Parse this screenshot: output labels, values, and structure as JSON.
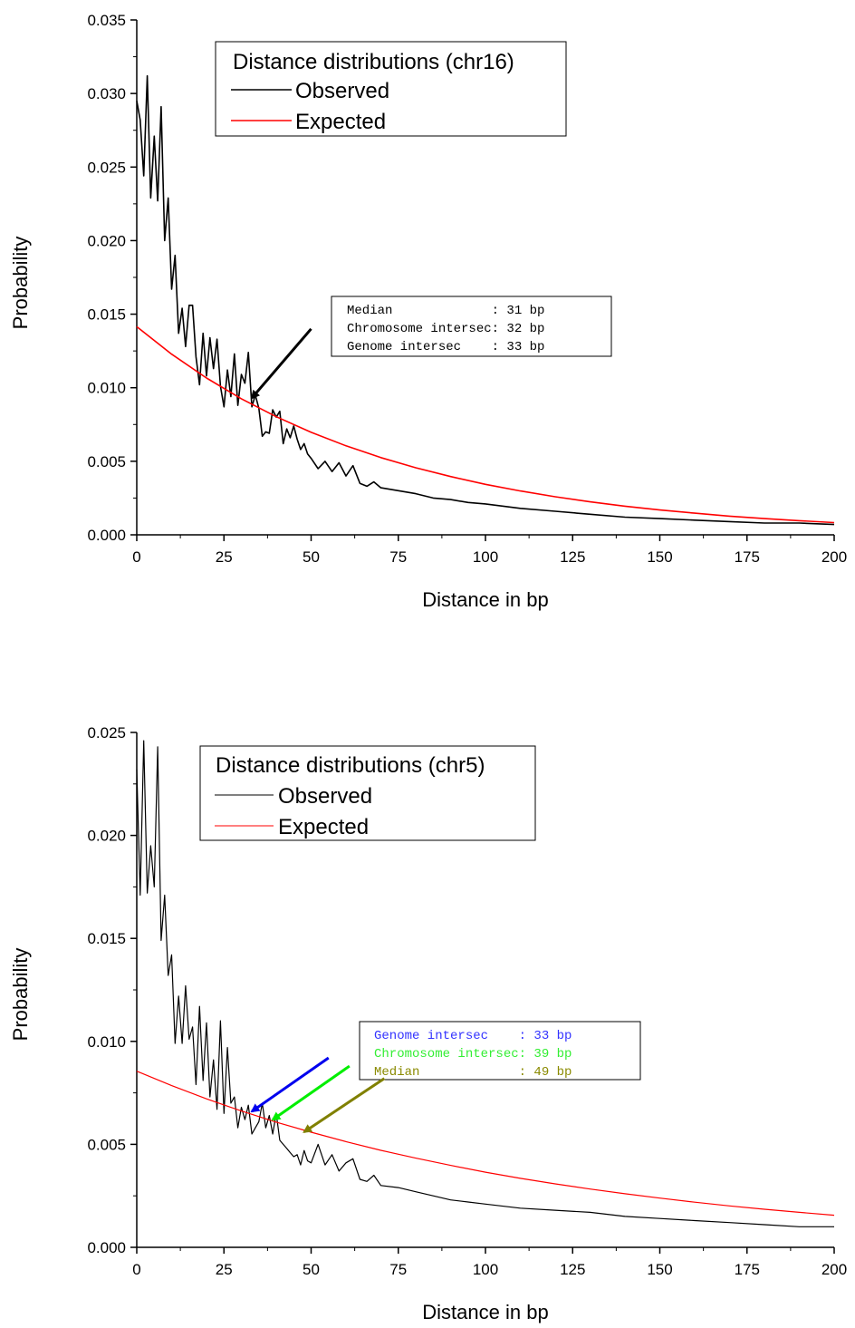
{
  "chart_data": [
    {
      "type": "line",
      "xlabel": "Distance in bp",
      "ylabel": "Probability",
      "xlim": [
        0,
        200
      ],
      "ylim": [
        0,
        0.035
      ],
      "xticks": [
        0,
        25,
        50,
        75,
        100,
        125,
        150,
        175,
        200
      ],
      "xtick_labels": [
        "0",
        "25",
        "50",
        "75",
        "100",
        "125",
        "150",
        "175",
        "200"
      ],
      "yticks": [
        0,
        0.005,
        0.01,
        0.015,
        0.02,
        0.025,
        0.03,
        0.035
      ],
      "ytick_labels": [
        "0.000",
        "0.005",
        "0.010",
        "0.015",
        "0.020",
        "0.025",
        "0.030",
        "0.035"
      ],
      "grid": false,
      "legend": {
        "title": "Distance distributions (chr16)",
        "placement": "top-center",
        "entries": [
          "Observed",
          "Expected"
        ]
      },
      "series": [
        {
          "name": "Observed",
          "color": "#000000",
          "x": [
            0,
            1,
            2,
            3,
            4,
            5,
            6,
            7,
            8,
            9,
            10,
            11,
            12,
            13,
            14,
            15,
            16,
            17,
            18,
            19,
            20,
            21,
            22,
            23,
            24,
            25,
            26,
            27,
            28,
            29,
            30,
            31,
            32,
            33,
            34,
            35,
            36,
            37,
            38,
            39,
            40,
            41,
            42,
            43,
            44,
            45,
            46,
            47,
            48,
            49,
            50,
            52,
            54,
            56,
            58,
            60,
            62,
            64,
            66,
            68,
            70,
            75,
            80,
            85,
            90,
            95,
            100,
            110,
            120,
            130,
            140,
            150,
            160,
            170,
            180,
            190,
            200
          ],
          "values": [
            0.0295,
            0.0282,
            0.0244,
            0.0312,
            0.0229,
            0.0271,
            0.0227,
            0.0291,
            0.02,
            0.0229,
            0.0167,
            0.019,
            0.0137,
            0.0154,
            0.0128,
            0.0156,
            0.0156,
            0.0121,
            0.0102,
            0.0137,
            0.0108,
            0.0134,
            0.0113,
            0.0133,
            0.0101,
            0.0087,
            0.0112,
            0.0094,
            0.0123,
            0.0088,
            0.0109,
            0.0103,
            0.0124,
            0.0087,
            0.0095,
            0.0086,
            0.0067,
            0.007,
            0.0069,
            0.0085,
            0.008,
            0.0084,
            0.0062,
            0.0072,
            0.0066,
            0.0074,
            0.0065,
            0.0058,
            0.0062,
            0.0055,
            0.0052,
            0.0045,
            0.005,
            0.0043,
            0.0049,
            0.004,
            0.0047,
            0.0035,
            0.0033,
            0.0036,
            0.0032,
            0.003,
            0.0028,
            0.0025,
            0.0024,
            0.0022,
            0.0021,
            0.0018,
            0.0016,
            0.0014,
            0.0012,
            0.0011,
            0.001,
            0.0009,
            0.0008,
            0.0008,
            0.0007
          ]
        },
        {
          "name": "Expected",
          "color": "#ff0000",
          "x": [
            0,
            10,
            20,
            30,
            40,
            50,
            60,
            70,
            80,
            90,
            100,
            110,
            120,
            130,
            140,
            150,
            160,
            170,
            180,
            190,
            200
          ],
          "values": [
            0.01415,
            0.01228,
            0.01066,
            0.00925,
            0.00803,
            0.00697,
            0.00605,
            0.00525,
            0.00456,
            0.00396,
            0.00343,
            0.00298,
            0.00259,
            0.00224,
            0.00195,
            0.00169,
            0.00147,
            0.00127,
            0.0011,
            0.00096,
            0.00083
          ]
        }
      ],
      "annotation": {
        "lines": [
          {
            "text": "Median             : 31 bp",
            "color": "#000000"
          },
          {
            "text": "Chromosome intersec: 32 bp",
            "color": "#000000"
          },
          {
            "text": "Genome intersec    : 33 bp",
            "color": "#000000"
          }
        ],
        "arrows": [
          {
            "color": "#000000",
            "from": [
              50,
              0.014
            ],
            "to": [
              33,
              0.0093
            ]
          }
        ]
      }
    },
    {
      "type": "line",
      "xlabel": "Distance in bp",
      "ylabel": "Probability",
      "xlim": [
        0,
        200
      ],
      "ylim": [
        0,
        0.025
      ],
      "xticks": [
        0,
        25,
        50,
        75,
        100,
        125,
        150,
        175,
        200
      ],
      "xtick_labels": [
        "0",
        "25",
        "50",
        "75",
        "100",
        "125",
        "150",
        "175",
        "200"
      ],
      "yticks": [
        0,
        0.005,
        0.01,
        0.015,
        0.02,
        0.025
      ],
      "ytick_labels": [
        "0.000",
        "0.005",
        "0.010",
        "0.015",
        "0.020",
        "0.025"
      ],
      "grid": false,
      "legend": {
        "title": "Distance distributions (chr5)",
        "placement": "top-center",
        "entries": [
          "Observed",
          "Expected"
        ]
      },
      "series": [
        {
          "name": "Observed",
          "color": "#000000",
          "x": [
            0,
            1,
            2,
            3,
            4,
            5,
            6,
            7,
            8,
            9,
            10,
            11,
            12,
            13,
            14,
            15,
            16,
            17,
            18,
            19,
            20,
            21,
            22,
            23,
            24,
            25,
            26,
            27,
            28,
            29,
            30,
            31,
            32,
            33,
            34,
            35,
            36,
            37,
            38,
            39,
            40,
            41,
            42,
            43,
            44,
            45,
            46,
            47,
            48,
            49,
            50,
            52,
            54,
            56,
            58,
            60,
            62,
            64,
            66,
            68,
            70,
            75,
            80,
            85,
            90,
            95,
            100,
            110,
            120,
            130,
            140,
            150,
            160,
            170,
            180,
            190,
            200
          ],
          "values": [
            0.0232,
            0.0171,
            0.0246,
            0.0172,
            0.0195,
            0.0175,
            0.0243,
            0.0149,
            0.0171,
            0.0132,
            0.0142,
            0.0099,
            0.0122,
            0.0099,
            0.0127,
            0.0101,
            0.0107,
            0.0079,
            0.0117,
            0.0081,
            0.0109,
            0.0073,
            0.0091,
            0.0067,
            0.011,
            0.0065,
            0.0097,
            0.007,
            0.0073,
            0.0058,
            0.0068,
            0.0062,
            0.0069,
            0.0055,
            0.0058,
            0.0061,
            0.007,
            0.0058,
            0.0064,
            0.0055,
            0.0065,
            0.0052,
            0.005,
            0.0048,
            0.0046,
            0.0044,
            0.0045,
            0.004,
            0.0047,
            0.0042,
            0.0041,
            0.005,
            0.004,
            0.0045,
            0.0037,
            0.0041,
            0.0043,
            0.0033,
            0.0032,
            0.0035,
            0.003,
            0.0029,
            0.0027,
            0.0025,
            0.0023,
            0.0022,
            0.0021,
            0.0019,
            0.0018,
            0.0017,
            0.0015,
            0.0014,
            0.0013,
            0.0012,
            0.0011,
            0.001,
            0.001
          ]
        },
        {
          "name": "Expected",
          "color": "#ff0000",
          "x": [
            0,
            10,
            20,
            30,
            40,
            50,
            60,
            70,
            80,
            90,
            100,
            110,
            120,
            130,
            140,
            150,
            160,
            170,
            180,
            190,
            200
          ],
          "values": [
            0.00855,
            0.00785,
            0.00721,
            0.00662,
            0.00608,
            0.00559,
            0.00513,
            0.00471,
            0.00433,
            0.00398,
            0.00365,
            0.00335,
            0.00308,
            0.00283,
            0.0026,
            0.00239,
            0.00219,
            0.00201,
            0.00185,
            0.0017,
            0.00156
          ]
        }
      ],
      "annotation": {
        "lines": [
          {
            "text": "Genome intersec    : 33 bp",
            "color": "#3333ff"
          },
          {
            "text": "Chromosome intersec: 39 bp",
            "color": "#33ee33"
          },
          {
            "text": "Median             : 49 bp",
            "color": "#8a8a00"
          }
        ],
        "arrows": [
          {
            "color": "#0000ee",
            "from": [
              55,
              0.0092
            ],
            "to": [
              33,
              0.0066
            ]
          },
          {
            "color": "#00ee00",
            "from": [
              61,
              0.0088
            ],
            "to": [
              39,
              0.0062
            ]
          },
          {
            "color": "#808000",
            "from": [
              71,
              0.0082
            ],
            "to": [
              48,
              0.0056
            ]
          }
        ]
      }
    }
  ]
}
